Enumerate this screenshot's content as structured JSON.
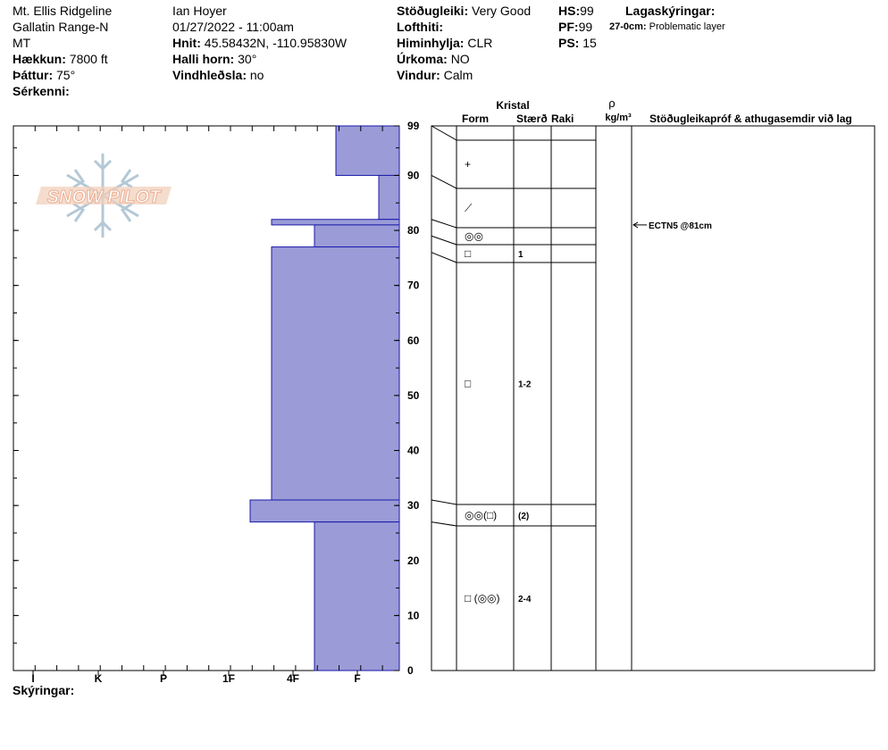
{
  "header": {
    "location": "Mt. Ellis Ridgeline",
    "range": "Gallatin Range-N",
    "state": "MT",
    "elevation_label": "Hækkun:",
    "elevation_value": "7800 ft",
    "aspect_label": "Þáttur:",
    "aspect_value": "75°",
    "specifics_label": "Sérkenni:",
    "observer": "Ian Hoyer",
    "datetime": "01/27/2022 - 11:00am",
    "coords_label": "Hnit:",
    "coords_value": "45.58432N, -110.95830W",
    "slope_label": "Halli horn:",
    "slope_value": "30°",
    "wind_loading_label": "Vindhleðsla:",
    "wind_loading_value": "no",
    "stability_label": "Stöðugleiki:",
    "stability_value": "Very Good",
    "air_temp_label": "Lofthiti:",
    "air_temp_value": "",
    "sky_label": "Himinhylja:",
    "sky_value": "CLR",
    "precip_label": "Úrkoma:",
    "precip_value": "NO",
    "wind_label": "Vindur:",
    "wind_value": "Calm",
    "hs_label": "HS:",
    "hs_value": "99",
    "pf_label": "PF:",
    "pf_value": "99",
    "ps_label": "PS:",
    "ps_value": "15",
    "layer_notes_title": "Lagaskýringar:",
    "layer_note_range": "27-0cm:",
    "layer_note_text": "Problematic layer"
  },
  "legend_label": "Skýringar:",
  "logo_text": "SNOW PILOT",
  "colors": {
    "hardness_fill": "#9b9bd8",
    "hardness_stroke": "#1a1aa8",
    "logo_orange": "#e8a080",
    "logo_blue": "#a8bfd0"
  },
  "columns": {
    "crystal_title": "Kristal",
    "form": "Form",
    "size": "Stærð",
    "moisture": "Raki",
    "density_symbol": "ρ",
    "density_unit": "kg/m³",
    "comments": "Stöðugleikapróf & athugasemdir við lag"
  },
  "chart_data": {
    "type": "bar",
    "orientation": "horizontal",
    "x_ticks": [
      "I",
      "K",
      "P",
      "1F",
      "4F",
      "F"
    ],
    "y_ticks": [
      "0",
      "10",
      "20",
      "30",
      "40",
      "50",
      "60",
      "70",
      "80",
      "90",
      "99"
    ],
    "ylim": [
      0,
      99
    ],
    "hardness_scale": "hand hardness (I, K, P, 1F, 4F, F)",
    "layers": [
      {
        "top": 99,
        "bottom": 90,
        "hardness": "F-"
      },
      {
        "top": 90,
        "bottom": 82,
        "hardness": "F+"
      },
      {
        "top": 82,
        "bottom": 81,
        "hardness": "4F-"
      },
      {
        "top": 81,
        "bottom": 77,
        "hardness": "4F+"
      },
      {
        "top": 77,
        "bottom": 31,
        "hardness": "4F-"
      },
      {
        "top": 31,
        "bottom": 27,
        "hardness": "1F+"
      },
      {
        "top": 27,
        "bottom": 0,
        "hardness": "4F+"
      }
    ],
    "grain_rows": [
      {
        "top": 99,
        "bottom": 90,
        "form_symbol": "+",
        "size": ""
      },
      {
        "top": 90,
        "bottom": 82,
        "form_symbol": "⟋",
        "size": ""
      },
      {
        "top": 82,
        "bottom": 79,
        "form_symbol": "◎◎",
        "size": ""
      },
      {
        "top": 79,
        "bottom": 76,
        "form_symbol": "□",
        "size": "1"
      },
      {
        "top": 76,
        "bottom": 31,
        "form_symbol": "□",
        "size": "1-2"
      },
      {
        "top": 31,
        "bottom": 27,
        "form_symbol": "◎◎(□)",
        "size": "(2)"
      },
      {
        "top": 27,
        "bottom": 0,
        "form_symbol": "□ (◎◎)",
        "size": "2-4"
      }
    ],
    "tests": [
      {
        "depth": 81,
        "text": "ECTN5 @81cm"
      }
    ]
  }
}
